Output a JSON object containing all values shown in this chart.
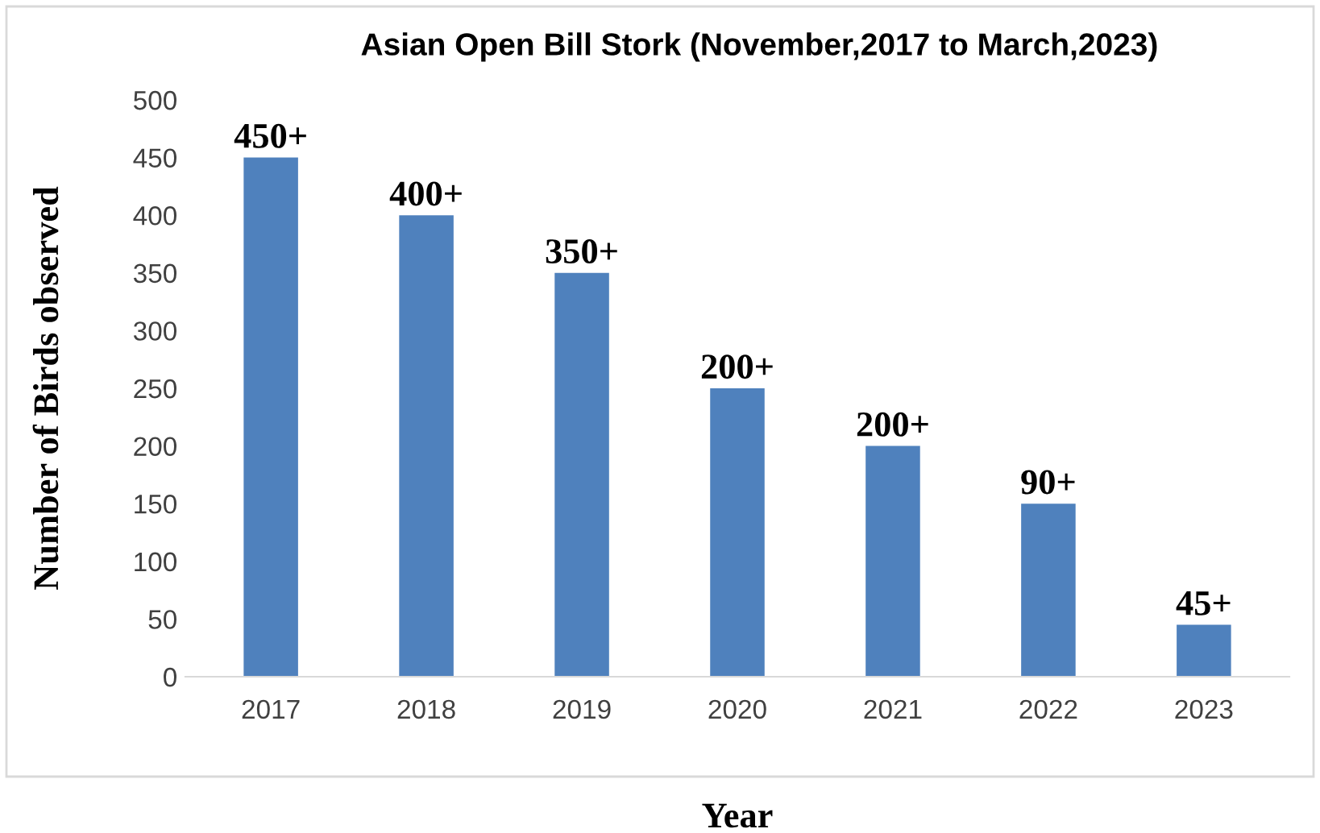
{
  "chart_data": {
    "type": "bar",
    "title": "Asian Open Bill Stork (November,2017 to March,2023)",
    "xlabel": "Year",
    "ylabel": "Number of Birds observed",
    "categories": [
      "2017",
      "2018",
      "2019",
      "2020",
      "2021",
      "2022",
      "2023"
    ],
    "values": [
      450,
      400,
      350,
      250,
      200,
      150,
      45
    ],
    "value_labels": [
      "450+",
      "400+",
      "350+",
      "200+",
      "200+",
      "90+",
      "45+"
    ],
    "color": "#4f81bd",
    "ylim": [
      0,
      500
    ],
    "yticks": [
      0,
      50,
      100,
      150,
      200,
      250,
      300,
      350,
      400,
      450,
      500
    ],
    "grid": false,
    "legend": false
  }
}
